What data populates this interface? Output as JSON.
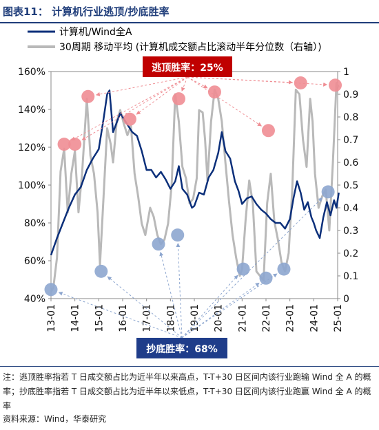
{
  "header": {
    "title": "图表11：  计算机行业逃顶/抄底胜率"
  },
  "footer": {
    "note": "注：逃顶胜率指若 T 日成交额占比为近半年以来高点，T-T+30 日区间内该行业跑输 Wind 全 A 的概率；抄底胜率指若 T 日成交额占比为近半年以来低点，T-T+30 日区间内该行业跑赢 Wind 全 A 的概率",
    "source": "资料来源：Wind，华泰研究"
  },
  "colors": {
    "primary": "#0b2f7a",
    "secondary": "#b9b9b9",
    "top_marker": "#ef8d93",
    "bottom_marker": "#8da6cf",
    "callout_top": "#c00000",
    "callout_bottom": "#1f3d8a"
  },
  "chart_data": {
    "type": "line",
    "x_ticks": [
      "13-01",
      "14-01",
      "15-01",
      "16-01",
      "17-01",
      "18-01",
      "19-01",
      "20-01",
      "21-01",
      "22-01",
      "23-01",
      "24-01",
      "25-01"
    ],
    "ylim_left": [
      0.4,
      1.6
    ],
    "yticks_left": [
      "40%",
      "60%",
      "80%",
      "100%",
      "120%",
      "140%",
      "160%"
    ],
    "ylim_right": [
      0,
      1
    ],
    "yticks_right": [
      "0",
      "0.1",
      "0.2",
      "0.3",
      "0.4",
      "0.5",
      "0.6",
      "0.7",
      "0.8",
      "0.9",
      "1"
    ],
    "series": [
      {
        "name": "计算机/Wind全A",
        "axis": "left",
        "color": "#0b2f7a",
        "points": [
          [
            2013.0,
            0.63
          ],
          [
            2013.25,
            0.72
          ],
          [
            2013.5,
            0.8
          ],
          [
            2013.75,
            0.88
          ],
          [
            2014.0,
            0.95
          ],
          [
            2014.25,
            0.99
          ],
          [
            2014.5,
            1.08
          ],
          [
            2014.75,
            1.14
          ],
          [
            2015.0,
            1.19
          ],
          [
            2015.2,
            1.35
          ],
          [
            2015.35,
            1.48
          ],
          [
            2015.45,
            1.5
          ],
          [
            2015.6,
            1.28
          ],
          [
            2015.75,
            1.33
          ],
          [
            2015.9,
            1.38
          ],
          [
            2016.05,
            1.35
          ],
          [
            2016.2,
            1.32
          ],
          [
            2016.4,
            1.28
          ],
          [
            2016.6,
            1.26
          ],
          [
            2016.8,
            1.18
          ],
          [
            2017.0,
            1.08
          ],
          [
            2017.2,
            1.08
          ],
          [
            2017.4,
            1.04
          ],
          [
            2017.6,
            1.07
          ],
          [
            2017.8,
            1.03
          ],
          [
            2018.0,
            0.98
          ],
          [
            2018.2,
            1.02
          ],
          [
            2018.35,
            1.1
          ],
          [
            2018.5,
            0.98
          ],
          [
            2018.7,
            0.95
          ],
          [
            2018.9,
            0.88
          ],
          [
            2019.0,
            0.89
          ],
          [
            2019.2,
            0.96
          ],
          [
            2019.4,
            0.95
          ],
          [
            2019.6,
            1.04
          ],
          [
            2019.8,
            1.08
          ],
          [
            2020.0,
            1.17
          ],
          [
            2020.15,
            1.28
          ],
          [
            2020.3,
            1.18
          ],
          [
            2020.5,
            1.14
          ],
          [
            2020.7,
            1.02
          ],
          [
            2020.85,
            0.97
          ],
          [
            2021.0,
            0.9
          ],
          [
            2021.2,
            0.93
          ],
          [
            2021.4,
            0.94
          ],
          [
            2021.6,
            0.9
          ],
          [
            2021.8,
            0.87
          ],
          [
            2022.0,
            0.85
          ],
          [
            2022.2,
            0.82
          ],
          [
            2022.4,
            0.8
          ],
          [
            2022.6,
            0.8
          ],
          [
            2022.8,
            0.77
          ],
          [
            2023.0,
            0.82
          ],
          [
            2023.15,
            0.93
          ],
          [
            2023.3,
            1.02
          ],
          [
            2023.45,
            0.96
          ],
          [
            2023.6,
            0.87
          ],
          [
            2023.75,
            0.91
          ],
          [
            2023.9,
            0.83
          ],
          [
            2024.0,
            0.8
          ],
          [
            2024.1,
            0.76
          ],
          [
            2024.25,
            0.72
          ],
          [
            2024.4,
            0.83
          ],
          [
            2024.55,
            0.91
          ],
          [
            2024.7,
            0.84
          ],
          [
            2024.85,
            0.92
          ],
          [
            2024.95,
            0.88
          ],
          [
            2025.05,
            0.96
          ]
        ]
      },
      {
        "name": "30周期 移动平均 (计算机成交额占比滚动半年分位数（右轴）)",
        "axis": "right",
        "color": "#b9b9b9",
        "points": [
          [
            2013.0,
            0.03
          ],
          [
            2013.1,
            0.05
          ],
          [
            2013.25,
            0.18
          ],
          [
            2013.4,
            0.56
          ],
          [
            2013.55,
            0.66
          ],
          [
            2013.7,
            0.38
          ],
          [
            2013.85,
            0.55
          ],
          [
            2014.0,
            0.65
          ],
          [
            2014.15,
            0.38
          ],
          [
            2014.3,
            0.55
          ],
          [
            2014.5,
            0.88
          ],
          [
            2014.65,
            0.63
          ],
          [
            2014.8,
            0.55
          ],
          [
            2014.95,
            0.38
          ],
          [
            2015.05,
            0.15
          ],
          [
            2015.2,
            0.45
          ],
          [
            2015.35,
            0.75
          ],
          [
            2015.5,
            0.68
          ],
          [
            2015.6,
            0.6
          ],
          [
            2015.75,
            0.78
          ],
          [
            2015.9,
            0.83
          ],
          [
            2016.05,
            0.77
          ],
          [
            2016.2,
            0.72
          ],
          [
            2016.35,
            0.76
          ],
          [
            2016.5,
            0.55
          ],
          [
            2016.65,
            0.45
          ],
          [
            2016.8,
            0.33
          ],
          [
            2016.95,
            0.28
          ],
          [
            2017.05,
            0.34
          ],
          [
            2017.15,
            0.4
          ],
          [
            2017.3,
            0.36
          ],
          [
            2017.45,
            0.28
          ],
          [
            2017.6,
            0.24
          ],
          [
            2017.75,
            0.26
          ],
          [
            2017.9,
            0.33
          ],
          [
            2018.05,
            0.5
          ],
          [
            2018.2,
            0.9
          ],
          [
            2018.35,
            0.78
          ],
          [
            2018.5,
            0.58
          ],
          [
            2018.65,
            0.53
          ],
          [
            2018.8,
            0.42
          ],
          [
            2018.95,
            0.44
          ],
          [
            2019.1,
            0.53
          ],
          [
            2019.2,
            0.83
          ],
          [
            2019.35,
            0.82
          ],
          [
            2019.45,
            0.7
          ],
          [
            2019.55,
            0.52
          ],
          [
            2019.7,
            0.78
          ],
          [
            2019.85,
            0.92
          ],
          [
            2020.0,
            0.88
          ],
          [
            2020.15,
            0.78
          ],
          [
            2020.3,
            0.6
          ],
          [
            2020.45,
            0.43
          ],
          [
            2020.6,
            0.28
          ],
          [
            2020.75,
            0.18
          ],
          [
            2020.9,
            0.1
          ],
          [
            2021.0,
            0.13
          ],
          [
            2021.15,
            0.35
          ],
          [
            2021.3,
            0.52
          ],
          [
            2021.45,
            0.42
          ],
          [
            2021.6,
            0.12
          ],
          [
            2021.75,
            0.1
          ],
          [
            2021.9,
            0.08
          ],
          [
            2022.05,
            0.42
          ],
          [
            2022.2,
            0.55
          ],
          [
            2022.35,
            0.34
          ],
          [
            2022.5,
            0.26
          ],
          [
            2022.65,
            0.16
          ],
          [
            2022.8,
            0.12
          ],
          [
            2022.95,
            0.2
          ],
          [
            2023.1,
            0.48
          ],
          [
            2023.25,
            0.92
          ],
          [
            2023.4,
            0.9
          ],
          [
            2023.55,
            0.7
          ],
          [
            2023.7,
            0.58
          ],
          [
            2023.85,
            0.88
          ],
          [
            2023.95,
            0.78
          ],
          [
            2024.05,
            0.55
          ],
          [
            2024.2,
            0.4
          ],
          [
            2024.35,
            0.45
          ],
          [
            2024.5,
            0.48
          ],
          [
            2024.65,
            0.3
          ],
          [
            2024.8,
            0.6
          ],
          [
            2024.95,
            0.95
          ],
          [
            2025.05,
            0.93
          ]
        ]
      }
    ],
    "top_markers": [
      [
        2013.55,
        0.68
      ],
      [
        2014.0,
        0.68
      ],
      [
        2014.55,
        0.89
      ],
      [
        2016.3,
        0.79
      ],
      [
        2018.35,
        0.88
      ],
      [
        2019.85,
        0.91
      ],
      [
        2022.1,
        0.74
      ],
      [
        2023.45,
        0.95
      ],
      [
        2024.9,
        0.94
      ]
    ],
    "bottom_markers": [
      [
        2013.0,
        0.04
      ],
      [
        2015.1,
        0.12
      ],
      [
        2017.5,
        0.24
      ],
      [
        2018.3,
        0.28
      ],
      [
        2021.05,
        0.13
      ],
      [
        2022.0,
        0.09
      ],
      [
        2022.75,
        0.13
      ],
      [
        2024.6,
        0.47
      ]
    ],
    "annotations": {
      "top_label": "逃顶胜率：25%",
      "bottom_label": "抄底胜率：68%"
    }
  }
}
